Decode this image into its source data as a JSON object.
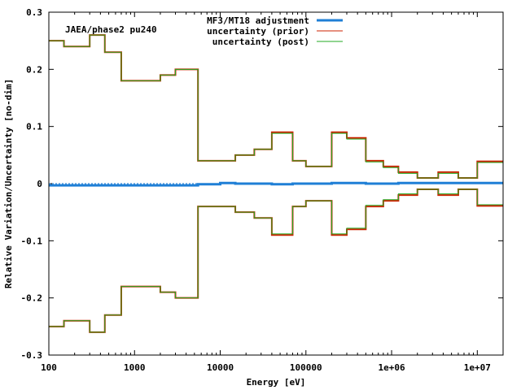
{
  "chart_data": {
    "type": "line",
    "title": "",
    "annotation": "JAEA/phase2 pu240",
    "xlabel": "Energy [eV]",
    "ylabel": "Relative Variation/Uncertainty [no-dim]",
    "x_scale": "log",
    "xlim": [
      100,
      20000000
    ],
    "ylim": [
      -0.3,
      0.3
    ],
    "x_ticks": [
      {
        "value": 100,
        "label": "100"
      },
      {
        "value": 1000,
        "label": "1000"
      },
      {
        "value": 10000,
        "label": "10000"
      },
      {
        "value": 100000,
        "label": "100000"
      },
      {
        "value": 1000000,
        "label": "1e+06"
      },
      {
        "value": 10000000,
        "label": "1e+07"
      }
    ],
    "y_ticks": [
      {
        "value": 0.3,
        "label": "0.3"
      },
      {
        "value": 0.2,
        "label": "0.2"
      },
      {
        "value": 0.1,
        "label": "0.1"
      },
      {
        "value": 0,
        "label": "0"
      },
      {
        "value": -0.1,
        "label": "-0.1"
      },
      {
        "value": -0.2,
        "label": "-0.2"
      },
      {
        "value": -0.3,
        "label": "-0.3"
      }
    ],
    "legend_position": "top-right",
    "bin_edges": [
      100,
      150,
      300,
      450,
      700,
      1000,
      2000,
      3000,
      5500,
      10000,
      15000,
      25000,
      40000,
      70000,
      100000,
      200000,
      300000,
      500000,
      800000,
      1200000,
      2000000,
      3500000,
      6000000,
      10000000,
      20000000
    ],
    "series": [
      {
        "name": "MF3/MT18 adjustment",
        "color": "#1f7fd6",
        "style": "step",
        "values": [
          -0.003,
          -0.003,
          -0.003,
          -0.003,
          -0.003,
          -0.003,
          -0.003,
          -0.003,
          -0.001,
          0.001,
          0.0,
          0.0,
          -0.001,
          0.0,
          0.0,
          0.001,
          0.001,
          0.0,
          0.0,
          0.001,
          0.001,
          0.001,
          0.001,
          0.001
        ]
      },
      {
        "name": "uncertainty (prior)",
        "color": "#cc2200",
        "style": "step-band",
        "values": [
          0.25,
          0.24,
          0.26,
          0.23,
          0.18,
          0.18,
          0.19,
          0.2,
          0.04,
          0.04,
          0.05,
          0.06,
          0.09,
          0.04,
          0.03,
          0.09,
          0.08,
          0.04,
          0.03,
          0.02,
          0.01,
          0.02,
          0.01,
          0.039
        ]
      },
      {
        "name": "uncertainty (post)",
        "color": "#22aa22",
        "style": "step-band",
        "values": [
          0.25,
          0.24,
          0.26,
          0.23,
          0.18,
          0.18,
          0.19,
          0.2,
          0.04,
          0.04,
          0.05,
          0.06,
          0.088,
          0.04,
          0.03,
          0.088,
          0.078,
          0.038,
          0.028,
          0.018,
          0.01,
          0.018,
          0.01,
          0.037
        ]
      }
    ],
    "zero_line": {
      "color": "#1f7fd6",
      "style": "dashed"
    }
  }
}
